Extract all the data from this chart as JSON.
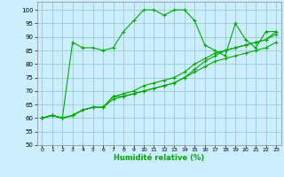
{
  "xlabel": "Humidité relative (%)",
  "background_color": "#cceeff",
  "grid_color": "#99cccc",
  "line_color": "#00aa00",
  "xlim": [
    -0.5,
    23.5
  ],
  "ylim": [
    50,
    103
  ],
  "yticks": [
    50,
    55,
    60,
    65,
    70,
    75,
    80,
    85,
    90,
    95,
    100
  ],
  "xticks": [
    0,
    1,
    2,
    3,
    4,
    5,
    6,
    7,
    8,
    9,
    10,
    11,
    12,
    13,
    14,
    15,
    16,
    17,
    18,
    19,
    20,
    21,
    22,
    23
  ],
  "series": [
    [
      60,
      61,
      60,
      88,
      86,
      86,
      85,
      86,
      92,
      96,
      100,
      100,
      98,
      100,
      100,
      96,
      87,
      85,
      83,
      95,
      89,
      86,
      92,
      92
    ],
    [
      60,
      61,
      60,
      61,
      63,
      64,
      64,
      68,
      69,
      70,
      72,
      73,
      74,
      75,
      77,
      80,
      82,
      84,
      85,
      86,
      87,
      88,
      89,
      92
    ],
    [
      60,
      61,
      60,
      61,
      63,
      64,
      64,
      68,
      68,
      69,
      70,
      71,
      72,
      73,
      75,
      78,
      81,
      83,
      85,
      86,
      87,
      88,
      89,
      91
    ],
    [
      60,
      61,
      60,
      61,
      63,
      64,
      64,
      67,
      68,
      69,
      70,
      71,
      72,
      73,
      75,
      77,
      79,
      81,
      82,
      83,
      84,
      85,
      86,
      88
    ]
  ]
}
